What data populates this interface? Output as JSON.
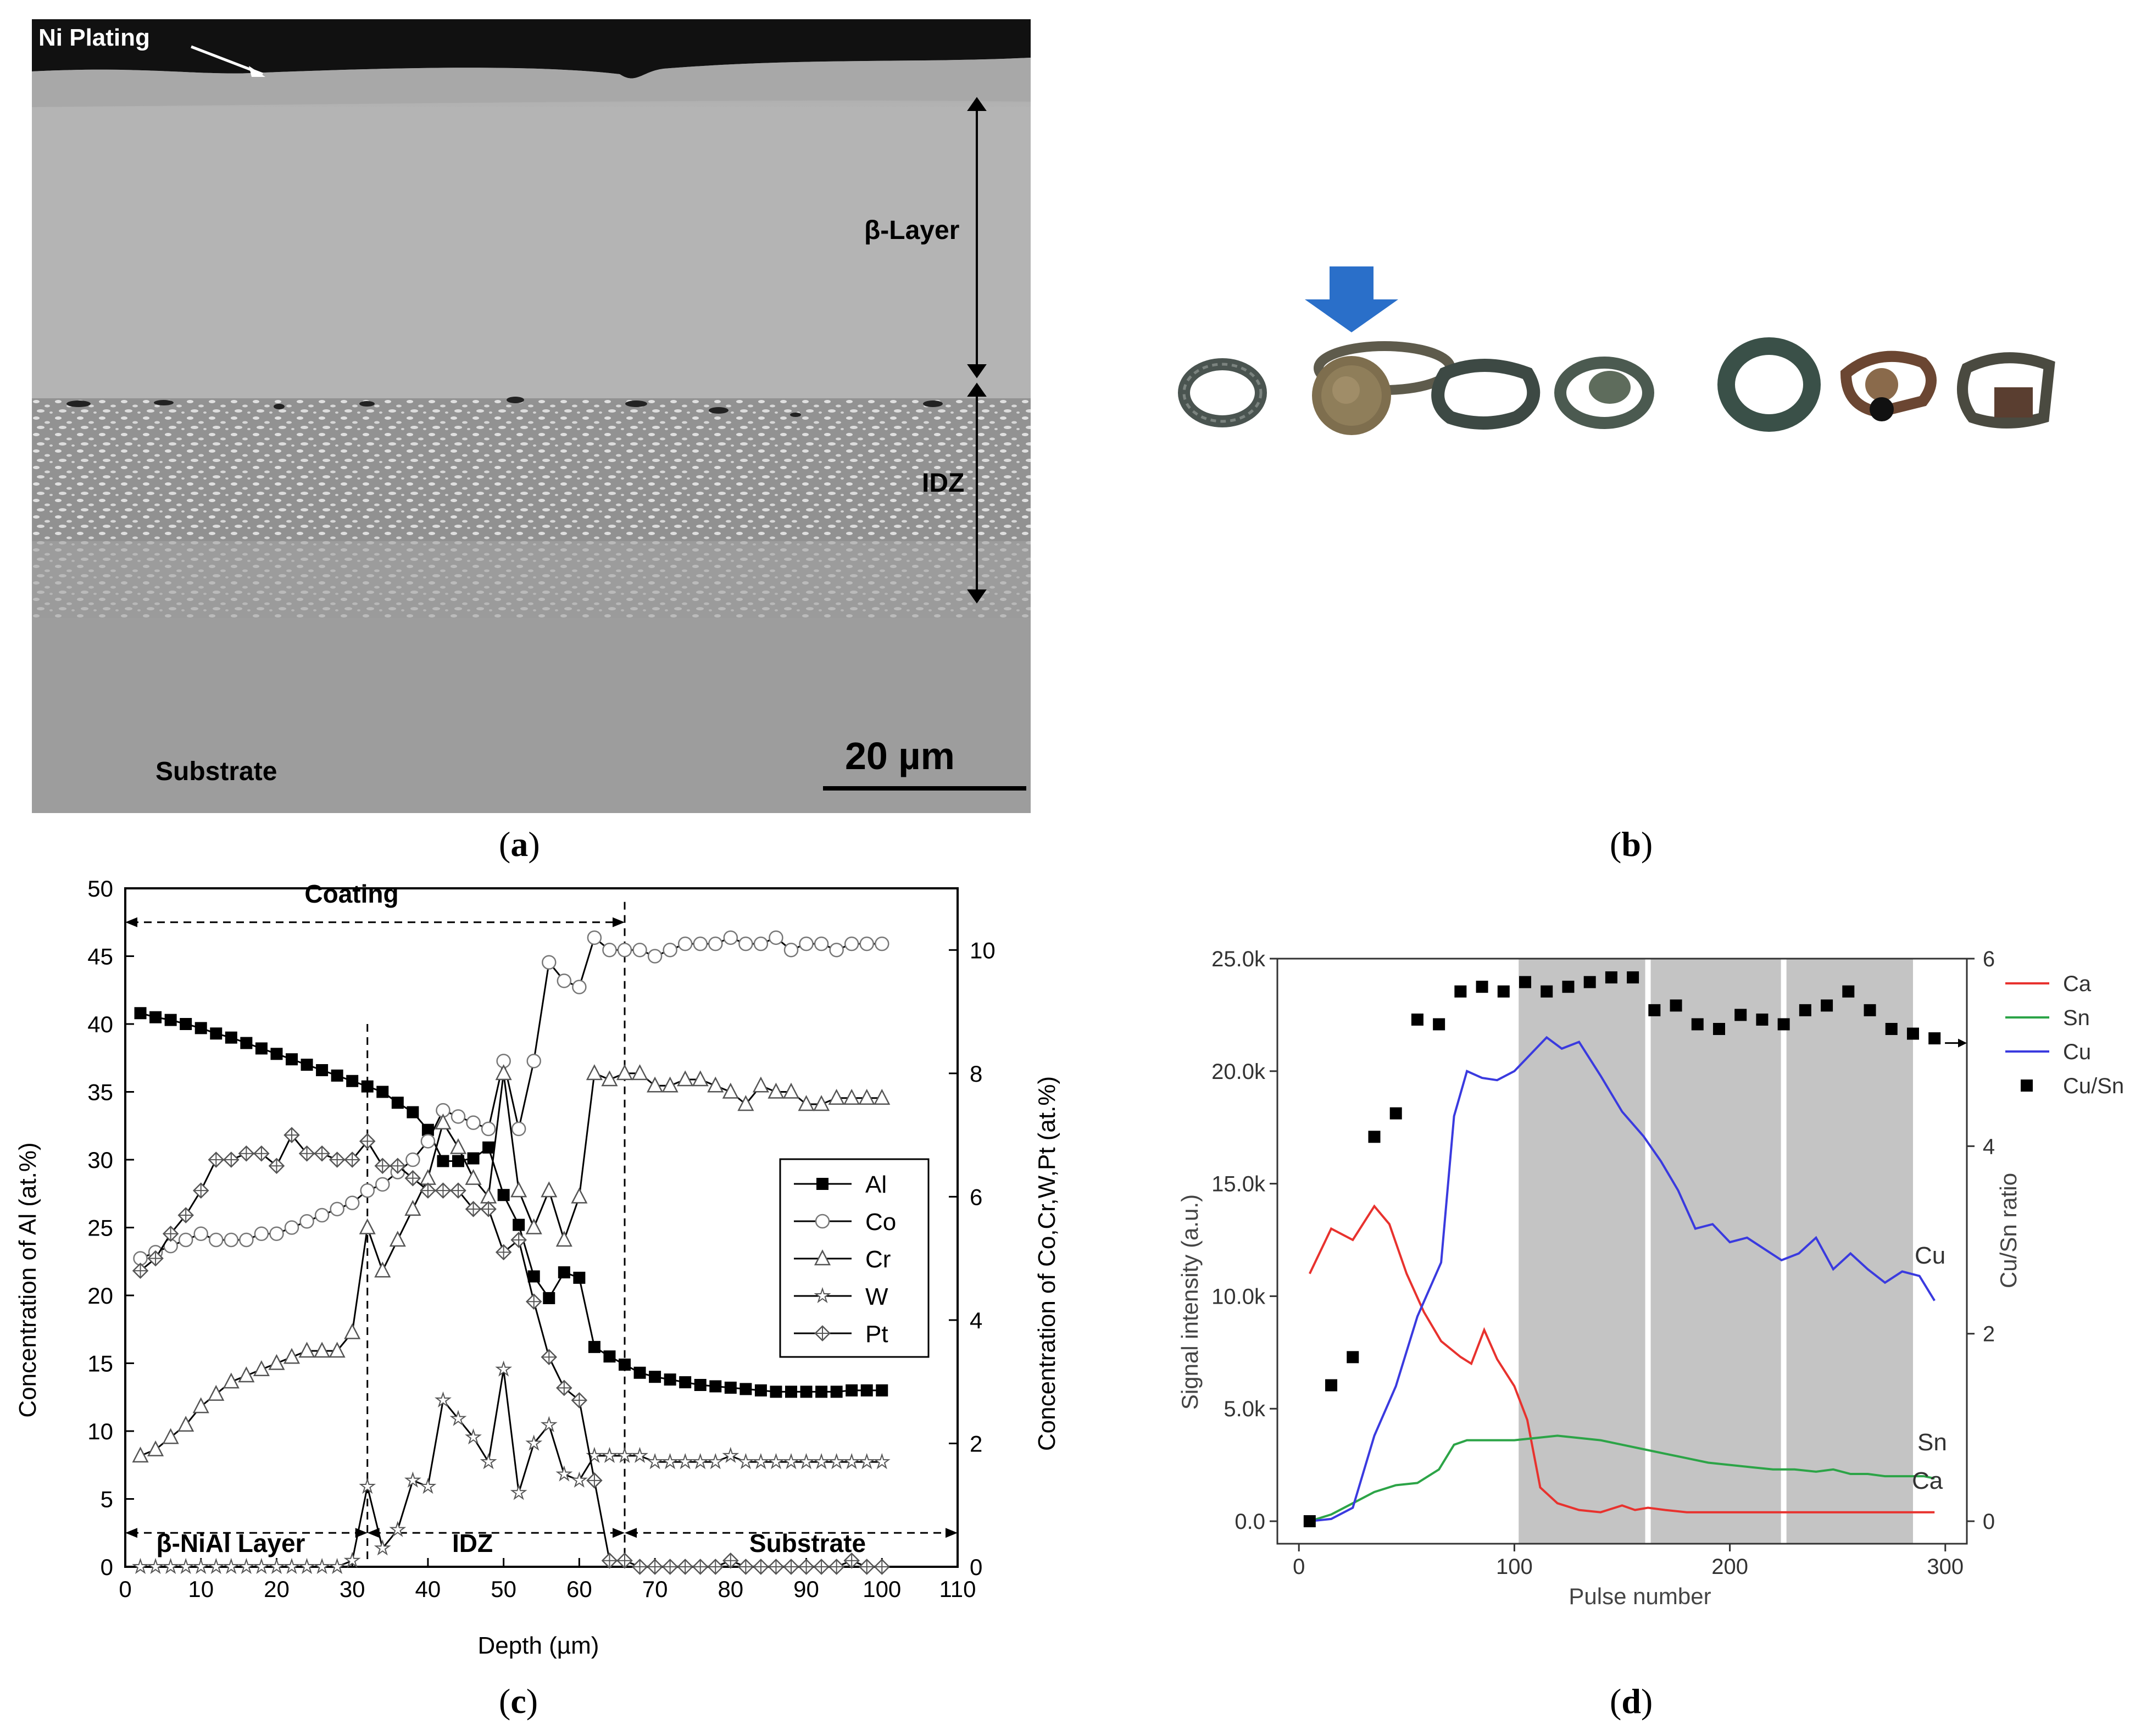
{
  "panels": {
    "a": {
      "label": "a"
    },
    "b": {
      "label": "b"
    },
    "c": {
      "label": "c"
    },
    "d": {
      "label": "d"
    }
  },
  "micrograph": {
    "ni_plating": "Ni Plating",
    "beta_layer": "β-Layer",
    "idz": "IDZ",
    "substrate": "Substrate",
    "scale_bar": "20 µm"
  },
  "chart_data": [
    {
      "type": "line",
      "panel": "c",
      "xlabel": "Depth (µm)",
      "ylabel": "Concentration of Al (at.%)",
      "y2label": "Concentration of Co,Cr,W,Pt (at.%)",
      "xlim": [
        0,
        110
      ],
      "ylim": [
        0,
        50
      ],
      "y2lim": [
        0,
        11
      ],
      "xticks": [
        0,
        10,
        20,
        30,
        40,
        50,
        60,
        70,
        80,
        90,
        100,
        110
      ],
      "yticks": [
        0,
        5,
        10,
        15,
        20,
        25,
        30,
        35,
        40,
        45,
        50
      ],
      "y2ticks": [
        0,
        2,
        4,
        6,
        8,
        10
      ],
      "legend": "right",
      "region_labels": {
        "coating": "Coating",
        "beta": "β-NiAl Layer",
        "idz": "IDZ",
        "substrate": "Substrate"
      },
      "boundaries": [
        32,
        66
      ],
      "series": [
        {
          "name": "Al",
          "marker": "square-filled",
          "axis": "left",
          "x": [
            2,
            4,
            6,
            8,
            10,
            12,
            14,
            16,
            18,
            20,
            22,
            24,
            26,
            28,
            30,
            32,
            34,
            36,
            38,
            40,
            42,
            44,
            46,
            48,
            50,
            52,
            54,
            56,
            58,
            60,
            62,
            64,
            66,
            68,
            70,
            72,
            74,
            76,
            78,
            80,
            82,
            84,
            86,
            88,
            90,
            92,
            94,
            96,
            98,
            100
          ],
          "y": [
            40.8,
            40.5,
            40.3,
            40.0,
            39.7,
            39.3,
            39.0,
            38.6,
            38.2,
            37.8,
            37.4,
            37.0,
            36.6,
            36.2,
            35.8,
            35.4,
            35.0,
            34.2,
            33.5,
            32.2,
            29.9,
            29.9,
            30.1,
            30.9,
            27.4,
            25.2,
            21.4,
            19.8,
            21.7,
            21.3,
            16.2,
            15.5,
            14.9,
            14.3,
            14.0,
            13.8,
            13.6,
            13.4,
            13.3,
            13.2,
            13.1,
            13.0,
            12.9,
            12.9,
            12.9,
            12.9,
            12.9,
            13.0,
            13.0,
            13.0
          ]
        },
        {
          "name": "Co",
          "marker": "circle-open",
          "axis": "right",
          "x": [
            2,
            4,
            6,
            8,
            10,
            12,
            14,
            16,
            18,
            20,
            22,
            24,
            26,
            28,
            30,
            32,
            34,
            36,
            38,
            40,
            42,
            44,
            46,
            48,
            50,
            52,
            54,
            56,
            58,
            60,
            62,
            64,
            66,
            68,
            70,
            72,
            74,
            76,
            78,
            80,
            82,
            84,
            86,
            88,
            90,
            92,
            94,
            96,
            98,
            100
          ],
          "y": [
            5.0,
            5.1,
            5.2,
            5.3,
            5.4,
            5.3,
            5.3,
            5.3,
            5.4,
            5.4,
            5.5,
            5.6,
            5.7,
            5.8,
            5.9,
            6.1,
            6.2,
            6.4,
            6.6,
            6.9,
            7.4,
            7.3,
            7.2,
            7.1,
            8.2,
            7.1,
            8.2,
            9.8,
            9.5,
            9.4,
            10.2,
            10.0,
            10.0,
            10.0,
            9.9,
            10.0,
            10.1,
            10.1,
            10.1,
            10.2,
            10.1,
            10.1,
            10.2,
            10.0,
            10.1,
            10.1,
            10.0,
            10.1,
            10.1,
            10.1
          ]
        },
        {
          "name": "Cr",
          "marker": "triangle-open",
          "axis": "right",
          "x": [
            2,
            4,
            6,
            8,
            10,
            12,
            14,
            16,
            18,
            20,
            22,
            24,
            26,
            28,
            30,
            32,
            34,
            36,
            38,
            40,
            42,
            44,
            46,
            48,
            50,
            52,
            54,
            56,
            58,
            60,
            62,
            64,
            66,
            68,
            70,
            72,
            74,
            76,
            78,
            80,
            82,
            84,
            86,
            88,
            90,
            92,
            94,
            96,
            98,
            100
          ],
          "y": [
            1.8,
            1.9,
            2.1,
            2.3,
            2.6,
            2.8,
            3.0,
            3.1,
            3.2,
            3.3,
            3.4,
            3.5,
            3.5,
            3.5,
            3.8,
            5.5,
            4.8,
            5.3,
            5.8,
            6.3,
            7.2,
            6.8,
            6.3,
            6.0,
            8.0,
            6.1,
            5.5,
            6.1,
            5.3,
            6.0,
            8.0,
            7.9,
            8.0,
            8.0,
            7.8,
            7.8,
            7.9,
            7.9,
            7.8,
            7.7,
            7.5,
            7.8,
            7.7,
            7.7,
            7.5,
            7.5,
            7.6,
            7.6,
            7.6,
            7.6
          ]
        },
        {
          "name": "W",
          "marker": "star-open",
          "axis": "right",
          "x": [
            2,
            4,
            6,
            8,
            10,
            12,
            14,
            16,
            18,
            20,
            22,
            24,
            26,
            28,
            30,
            32,
            34,
            36,
            38,
            40,
            42,
            44,
            46,
            48,
            50,
            52,
            54,
            56,
            58,
            60,
            62,
            64,
            66,
            68,
            70,
            72,
            74,
            76,
            78,
            80,
            82,
            84,
            86,
            88,
            90,
            92,
            94,
            96,
            98,
            100
          ],
          "y": [
            0,
            0,
            0,
            0,
            0,
            0,
            0,
            0,
            0,
            0,
            0,
            0,
            0,
            0,
            0.1,
            1.3,
            0.3,
            0.6,
            1.4,
            1.3,
            2.7,
            2.4,
            2.1,
            1.7,
            3.2,
            1.2,
            2.0,
            2.3,
            1.5,
            1.4,
            1.8,
            1.8,
            1.8,
            1.8,
            1.7,
            1.7,
            1.7,
            1.7,
            1.7,
            1.8,
            1.7,
            1.7,
            1.7,
            1.7,
            1.7,
            1.7,
            1.7,
            1.7,
            1.7,
            1.7
          ]
        },
        {
          "name": "Pt",
          "marker": "diamond-cross",
          "axis": "right",
          "x": [
            2,
            4,
            6,
            8,
            10,
            12,
            14,
            16,
            18,
            20,
            22,
            24,
            26,
            28,
            30,
            32,
            34,
            36,
            38,
            40,
            42,
            44,
            46,
            48,
            50,
            52,
            54,
            56,
            58,
            60,
            62,
            64,
            66,
            68,
            70,
            72,
            74,
            76,
            78,
            80,
            82,
            84,
            86,
            88,
            90,
            92,
            94,
            96,
            98,
            100
          ],
          "y": [
            4.8,
            5.0,
            5.4,
            5.7,
            6.1,
            6.6,
            6.6,
            6.7,
            6.7,
            6.5,
            7.0,
            6.7,
            6.7,
            6.6,
            6.6,
            6.9,
            6.5,
            6.5,
            6.3,
            6.1,
            6.1,
            6.1,
            5.8,
            5.8,
            5.1,
            5.3,
            4.3,
            3.4,
            2.9,
            2.7,
            1.4,
            0.1,
            0.1,
            0,
            0,
            0,
            0,
            0,
            0,
            0.1,
            0,
            0,
            0,
            0,
            0,
            0,
            0,
            0.1,
            0,
            0
          ]
        }
      ]
    },
    {
      "type": "line",
      "panel": "d",
      "xlabel": "Pulse number",
      "ylabel": "Signal intensity (a.u.)",
      "y2label": "Cu/Sn ratio",
      "xlim": [
        -10,
        310
      ],
      "ylim": [
        -1000,
        25000
      ],
      "y2lim": [
        -0.24,
        6
      ],
      "xticks": [
        0,
        100,
        200,
        300
      ],
      "xticklabels": [
        "0",
        "100",
        "200",
        "300"
      ],
      "yticks": [
        0,
        5000,
        10000,
        15000,
        20000,
        25000
      ],
      "yticklabels": [
        "0.0",
        "5.0k",
        "10.0k",
        "15.0k",
        "20.0k",
        "25.0k"
      ],
      "y2ticks": [
        0,
        2,
        4,
        6
      ],
      "y2ticklabels": [
        "0",
        "2",
        "4",
        "6"
      ],
      "legend": "top-right",
      "shaded_x_ranges": [
        [
          102,
          285
        ]
      ],
      "white_lines_x": [
        162,
        225
      ],
      "curve_labels": {
        "cu": "Cu",
        "sn": "Sn",
        "ca": "Ca"
      },
      "series": [
        {
          "name": "Ca",
          "color": "#e8322e",
          "axis": "left",
          "x": [
            5,
            15,
            25,
            35,
            42,
            50,
            58,
            66,
            75,
            80,
            86,
            92,
            100,
            106,
            112,
            120,
            130,
            140,
            150,
            156,
            162,
            170,
            180,
            200,
            220,
            240,
            260,
            280,
            295
          ],
          "y": [
            11000,
            13000,
            12500,
            14000,
            13200,
            11000,
            9300,
            8000,
            7300,
            7000,
            8500,
            7200,
            6000,
            4500,
            1500,
            800,
            500,
            400,
            700,
            500,
            600,
            500,
            400,
            400,
            400,
            400,
            400,
            400,
            400
          ]
        },
        {
          "name": "Sn",
          "color": "#2ca447",
          "axis": "left",
          "x": [
            5,
            15,
            25,
            35,
            45,
            55,
            65,
            72,
            78,
            90,
            100,
            110,
            120,
            130,
            140,
            150,
            160,
            170,
            180,
            190,
            200,
            210,
            220,
            230,
            240,
            248,
            256,
            264,
            272,
            280,
            290,
            295
          ],
          "y": [
            0,
            300,
            800,
            1300,
            1600,
            1700,
            2300,
            3400,
            3600,
            3600,
            3600,
            3700,
            3800,
            3700,
            3600,
            3400,
            3200,
            3000,
            2800,
            2600,
            2500,
            2400,
            2300,
            2300,
            2200,
            2300,
            2100,
            2100,
            2000,
            2000,
            2000,
            1900
          ]
        },
        {
          "name": "Cu",
          "color": "#3a3adf",
          "axis": "left",
          "x": [
            5,
            15,
            25,
            35,
            45,
            55,
            66,
            72,
            78,
            85,
            92,
            100,
            108,
            115,
            122,
            130,
            140,
            150,
            160,
            168,
            176,
            184,
            192,
            200,
            208,
            216,
            224,
            232,
            240,
            248,
            256,
            264,
            272,
            280,
            288,
            295
          ],
          "y": [
            0,
            100,
            600,
            3800,
            6000,
            9100,
            11500,
            18000,
            20000,
            19700,
            19600,
            20000,
            20800,
            21500,
            21000,
            21300,
            19800,
            18200,
            17100,
            16000,
            14700,
            13000,
            13200,
            12400,
            12600,
            12100,
            11600,
            11900,
            12600,
            11200,
            11900,
            11200,
            10600,
            11100,
            10900,
            9800
          ]
        },
        {
          "name": "Cu/Sn",
          "color": "#000000",
          "axis": "right",
          "marker": "square-filled",
          "x": [
            5,
            15,
            25,
            35,
            45,
            55,
            65,
            75,
            85,
            95,
            105,
            115,
            125,
            135,
            145,
            155,
            165,
            175,
            185,
            195,
            205,
            215,
            225,
            235,
            245,
            255,
            265,
            275,
            285,
            295
          ],
          "y": [
            0,
            1.45,
            1.75,
            4.1,
            4.35,
            5.35,
            5.3,
            5.65,
            5.7,
            5.65,
            5.75,
            5.65,
            5.7,
            5.75,
            5.8,
            5.8,
            5.45,
            5.5,
            5.3,
            5.25,
            5.4,
            5.35,
            5.3,
            5.45,
            5.5,
            5.65,
            5.45,
            5.25,
            5.2,
            5.15
          ]
        }
      ]
    }
  ]
}
